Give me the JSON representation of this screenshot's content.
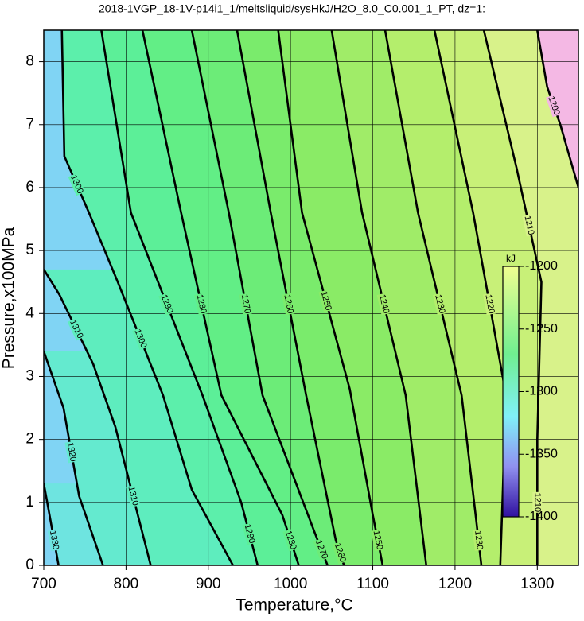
{
  "chart_data": {
    "type": "contour",
    "title": "2018-1VGP_18-1V-p14i1_1/meltsliquid/sysHkJ/H2O_8.0_C0.001_1_PT, dz=1:",
    "x_label": "Temperature,°C",
    "y_label": "Pressure,x100MPa",
    "xlim": [
      700,
      1350
    ],
    "ylim": [
      0,
      8.5
    ],
    "xticks": [
      700,
      800,
      900,
      1000,
      1100,
      1200,
      1300
    ],
    "yticks": [
      0,
      1,
      2,
      3,
      4,
      5,
      6,
      7,
      8
    ],
    "grid": true,
    "background_color": "#80d4f4",
    "contours": [
      {
        "level": 1330,
        "color": "#6ee4e0",
        "x": [
          700,
          707,
          718
        ],
        "y": [
          1.3,
          0.8,
          0
        ]
      },
      {
        "level": 1320,
        "color": "#64eacf",
        "x": [
          700,
          724,
          743,
          772
        ],
        "y": [
          3.4,
          2.5,
          1.1,
          0
        ]
      },
      {
        "level": 1310,
        "color": "#5eedbe",
        "x": [
          700,
          719,
          760,
          787,
          830
        ],
        "y": [
          4.7,
          4.3,
          3.2,
          2.2,
          0
        ]
      },
      {
        "level": 1300,
        "color": "#5cefab",
        "x": [
          722,
          725,
          755,
          790,
          845,
          880,
          930
        ],
        "y": [
          8.5,
          6.5,
          5.6,
          4.5,
          2.7,
          1.2,
          0
        ]
      },
      {
        "level": 1290,
        "color": "#5cef98",
        "x": [
          770,
          806,
          893,
          940,
          960
        ],
        "y": [
          8.5,
          5.6,
          2.7,
          1.0,
          0
        ]
      },
      {
        "level": 1280,
        "color": "#62ee86",
        "x": [
          820,
          867,
          916,
          990,
          1010
        ],
        "y": [
          8.5,
          5.6,
          2.7,
          0.8,
          0
        ]
      },
      {
        "level": 1270,
        "color": "#6cec78",
        "x": [
          880,
          925,
          966,
          1030,
          1045
        ],
        "y": [
          8.5,
          5.6,
          2.7,
          0.5,
          0
        ]
      },
      {
        "level": 1260,
        "color": "#7aeb6c",
        "x": [
          935,
          976,
          1019,
          1055,
          1065
        ],
        "y": [
          8.5,
          5.6,
          2.7,
          0.4,
          0
        ]
      },
      {
        "level": 1250,
        "color": "#8aeb66",
        "x": [
          985,
          1014,
          1072,
          1100,
          1112
        ],
        "y": [
          8.5,
          5.6,
          2.8,
          0.8,
          0
        ]
      },
      {
        "level": 1240,
        "color": "#a0ec68",
        "x": [
          1050,
          1087,
          1140,
          1165
        ],
        "y": [
          8.5,
          5.6,
          2.7,
          0
        ]
      },
      {
        "level": 1230,
        "color": "#b4ee6c",
        "x": [
          1115,
          1155,
          1208,
          1225,
          1232
        ],
        "y": [
          8.5,
          5.6,
          2.7,
          0.8,
          0
        ]
      },
      {
        "level": 1220,
        "color": "#c8f078",
        "x": [
          1175,
          1222,
          1262,
          1255
        ],
        "y": [
          8.5,
          5.6,
          2.7,
          0
        ]
      },
      {
        "level": 1210,
        "color": "#d8f28a",
        "x": [
          1235,
          1275,
          1305,
          1300,
          1300
        ],
        "y": [
          8.5,
          6.3,
          4.5,
          2.0,
          0
        ]
      },
      {
        "level": 1200,
        "color": "#f4b8e4",
        "x": [
          1300,
          1312,
          1328,
          1350
        ],
        "y": [
          8.5,
          7.6,
          7.0,
          6.0
        ]
      }
    ],
    "colorbar": {
      "label": "kJ",
      "clim": [
        -1400,
        -1200
      ],
      "ticks": [
        -1200,
        -1250,
        -1300,
        -1350,
        -1400
      ],
      "stops": [
        {
          "value": -1400,
          "color": "#3010a0"
        },
        {
          "value": -1360,
          "color": "#9090f0"
        },
        {
          "value": -1320,
          "color": "#80f0f8"
        },
        {
          "value": -1270,
          "color": "#70ee90"
        },
        {
          "value": -1200,
          "color": "#f0ff90"
        }
      ]
    }
  }
}
